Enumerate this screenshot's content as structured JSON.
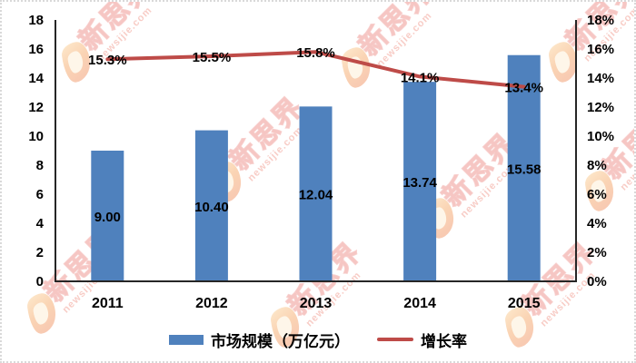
{
  "watermark": {
    "brand": "新思界",
    "domain": "newsijie.com"
  },
  "legend": {
    "bar_label": "市场规模（万亿元）",
    "line_label": "增长率"
  },
  "colors": {
    "bar": "#4F81BD",
    "line": "#BE4B48",
    "label_text": "#000000",
    "axis": "#262626"
  },
  "chart_data": {
    "type": "bar",
    "subtype": "bar+line combo",
    "categories": [
      "2011",
      "2012",
      "2013",
      "2014",
      "2015"
    ],
    "series": [
      {
        "name": "市场规模（万亿元）",
        "type": "bar",
        "axis": "left",
        "values": [
          9.0,
          10.4,
          12.04,
          13.74,
          15.58
        ],
        "labels": [
          "9.00",
          "10.40",
          "12.04",
          "13.74",
          "15.58"
        ]
      },
      {
        "name": "增长率",
        "type": "line",
        "axis": "right",
        "values": [
          15.3,
          15.5,
          15.8,
          14.1,
          13.4
        ],
        "labels": [
          "15.3%",
          "15.5%",
          "15.8%",
          "14.1%",
          "13.4%"
        ]
      }
    ],
    "left_axis": {
      "min": 0,
      "max": 18,
      "ticks": [
        "0",
        "2",
        "4",
        "6",
        "8",
        "10",
        "12",
        "14",
        "16",
        "18"
      ]
    },
    "right_axis": {
      "min": 0,
      "max": 18,
      "ticks": [
        "0%",
        "2%",
        "4%",
        "6%",
        "8%",
        "10%",
        "12%",
        "14%",
        "16%",
        "18%"
      ]
    },
    "title": "",
    "xlabel": "",
    "ylabel": "",
    "grid": false,
    "legend_position": "bottom"
  }
}
